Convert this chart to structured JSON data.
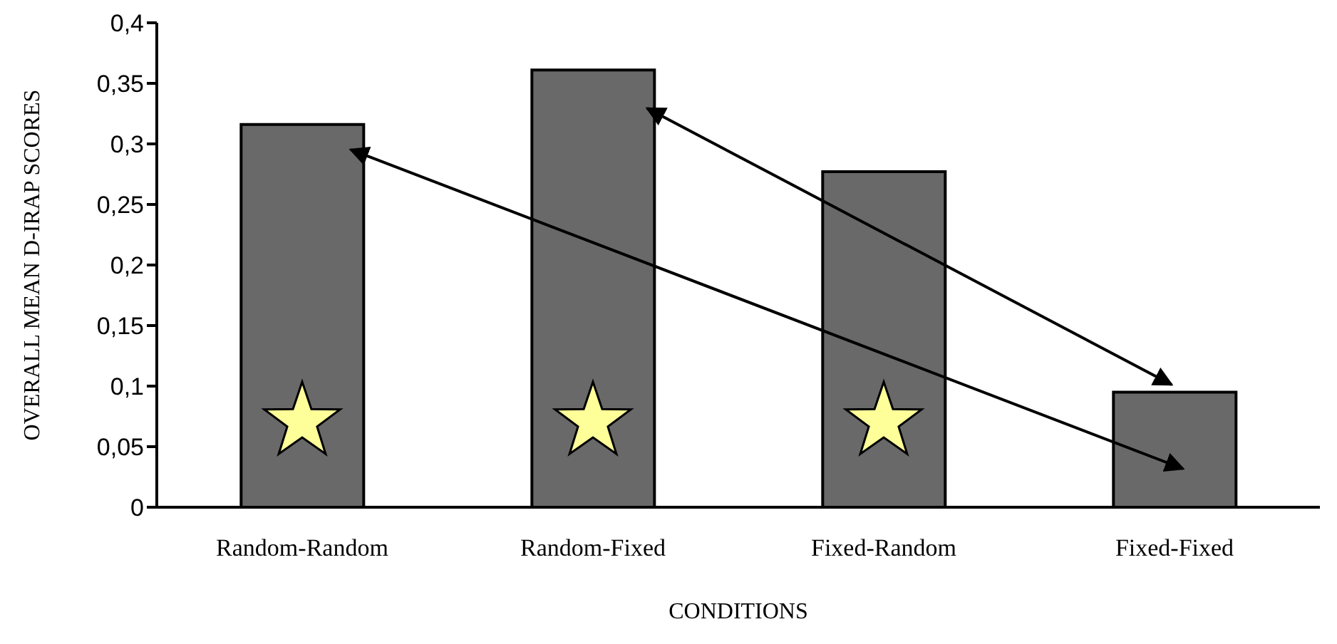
{
  "chart_data": {
    "type": "bar",
    "xlabel": "CONDITIONS",
    "ylabel": "OVERALL MEAN D-IRAP SCORES",
    "categories": [
      "Random-Random",
      "Random-Fixed",
      "Fixed-Random",
      "Fixed-Fixed"
    ],
    "values": [
      0.316,
      0.361,
      0.277,
      0.095
    ],
    "color": "#696969",
    "ylim": [
      0,
      0.4
    ],
    "yticks": [
      {
        "value": 0,
        "label": "0"
      },
      {
        "value": 0.05,
        "label": "0,05"
      },
      {
        "value": 0.1,
        "label": "0,1"
      },
      {
        "value": 0.15,
        "label": "0,15"
      },
      {
        "value": 0.2,
        "label": "0,2"
      },
      {
        "value": 0.25,
        "label": "0,25"
      },
      {
        "value": 0.3,
        "label": "0,3"
      },
      {
        "value": 0.35,
        "label": "0,35"
      },
      {
        "value": 0.4,
        "label": "0,4"
      }
    ],
    "grid": false,
    "legend": false
  }
}
